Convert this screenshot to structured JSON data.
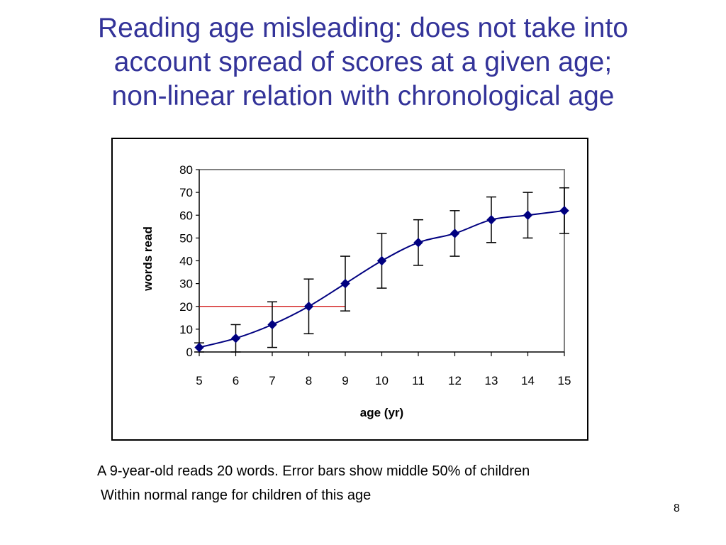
{
  "slide": {
    "title_lines": [
      "Reading age misleading: does not take into",
      "account spread of scores at a given age;",
      "non-linear relation with chronological age"
    ],
    "captions": [
      "A 9-year-old reads 20 words. Error bars show middle 50% of children",
      "Within normal range for children of this age"
    ],
    "page_number": "8"
  },
  "colors": {
    "title": "#333399",
    "series": "#000080",
    "reference_line": "#CC0000",
    "plot_border": "#808080"
  },
  "chart_data": {
    "type": "line",
    "xlabel": "age (yr)",
    "ylabel": "words read",
    "xlim": [
      5,
      15
    ],
    "ylim": [
      0,
      80
    ],
    "x_ticks": [
      "5",
      "6",
      "7",
      "8",
      "9",
      "10",
      "11",
      "12",
      "13",
      "14",
      "15"
    ],
    "y_ticks": [
      "0",
      "10",
      "20",
      "30",
      "40",
      "50",
      "60",
      "70",
      "80"
    ],
    "grid": false,
    "legend": "none",
    "marker": "diamond",
    "smooth": true,
    "series": [
      {
        "x": [
          5,
          6,
          7,
          8,
          9,
          10,
          11,
          12,
          13,
          14,
          15
        ],
        "y": [
          2,
          6,
          12,
          20,
          30,
          40,
          48,
          52,
          58,
          60,
          62
        ],
        "error_low": [
          0,
          0,
          2,
          8,
          18,
          28,
          38,
          42,
          48,
          50,
          52
        ],
        "error_high": [
          4,
          12,
          22,
          32,
          42,
          52,
          58,
          62,
          68,
          70,
          72
        ]
      }
    ],
    "reference_line": {
      "y": 20,
      "x_from": 5,
      "x_to": 9
    }
  }
}
